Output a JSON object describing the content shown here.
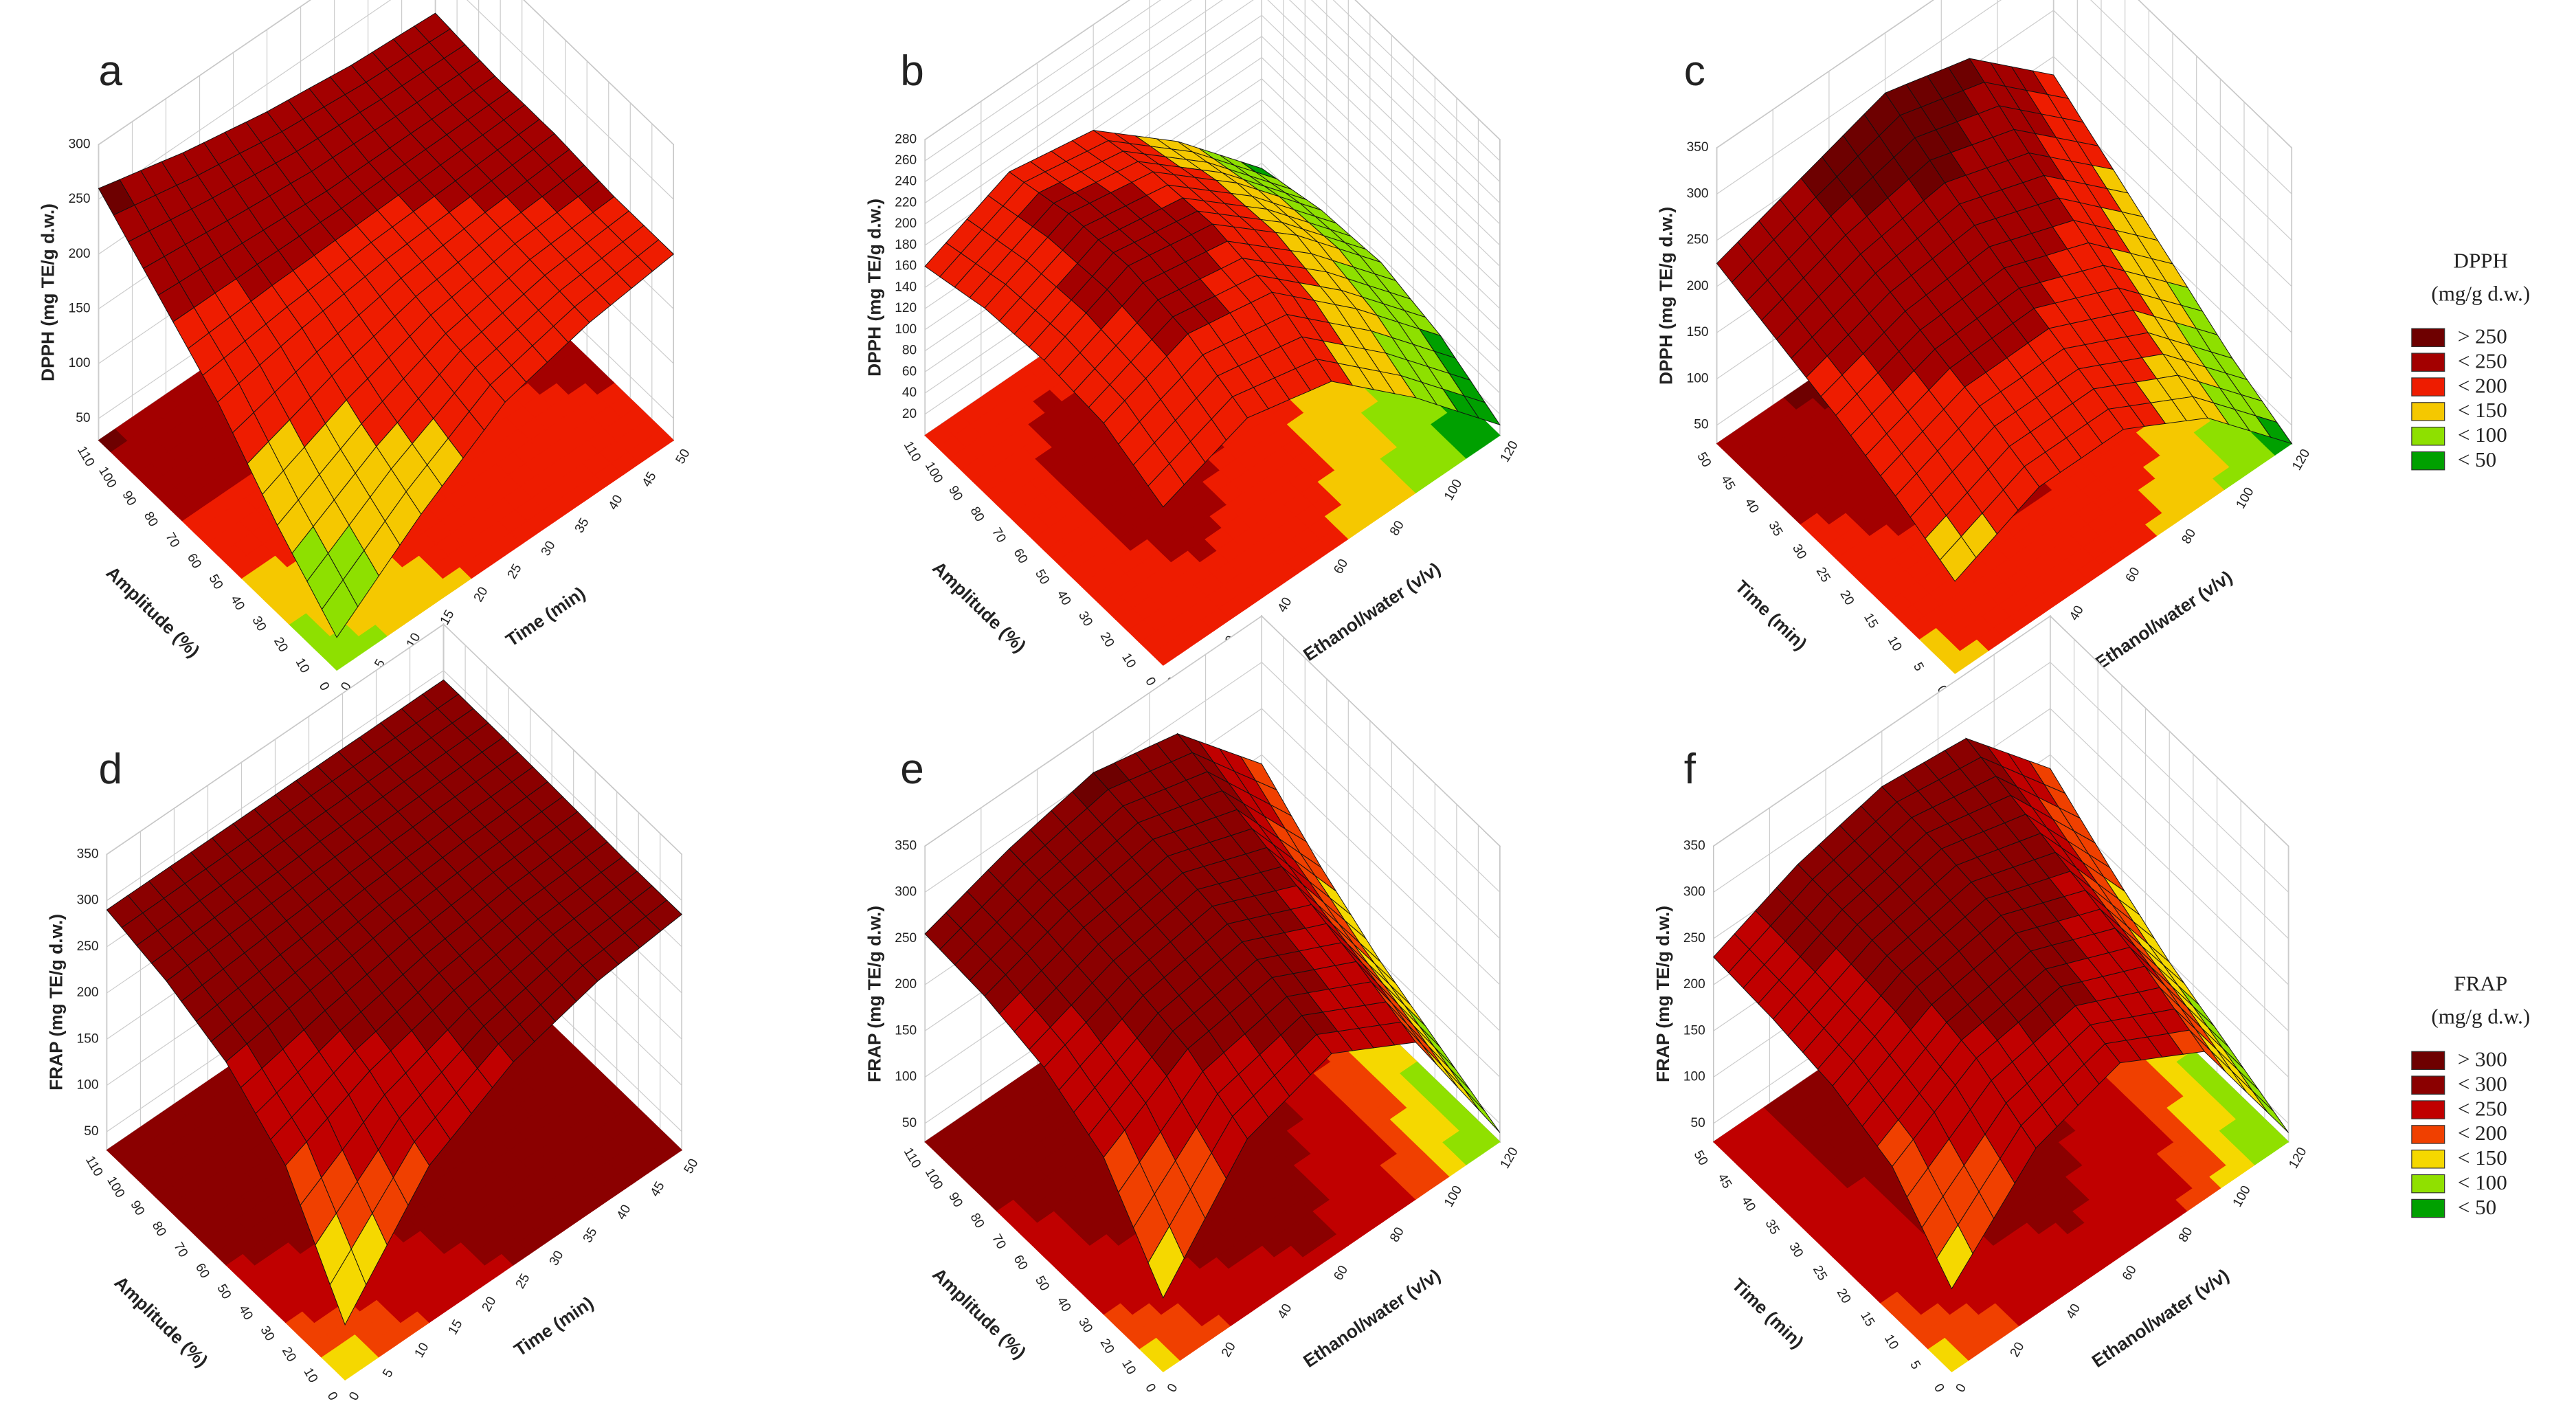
{
  "chart_data": [
    {
      "type": "surface3d",
      "panel": "a",
      "zlabel": "DPPH (mg TE/g d.w.)",
      "xlabel": "Amplitude (%)",
      "ylabel": "Time (min)",
      "xlim": [
        0,
        110
      ],
      "xticks": [
        0,
        10,
        20,
        30,
        40,
        50,
        60,
        70,
        80,
        90,
        100,
        110
      ],
      "ylim": [
        0,
        50
      ],
      "yticks": [
        0,
        5,
        10,
        15,
        20,
        25,
        30,
        35,
        40,
        45,
        50
      ],
      "zlim": [
        30,
        300
      ],
      "zticks": [
        50,
        100,
        150,
        200,
        250,
        300
      ],
      "z": [
        [
          60,
          120,
          170,
          190,
          200
        ],
        [
          110,
          150,
          180,
          195,
          200
        ],
        [
          170,
          185,
          195,
          200,
          205
        ],
        [
          215,
          210,
          205,
          205,
          205
        ],
        [
          260,
          240,
          225,
          215,
          210
        ]
      ]
    },
    {
      "type": "surface3d",
      "panel": "b",
      "zlabel": "DPPH (mg TE/g d.w.)",
      "xlabel": "Amplitude (%)",
      "ylabel": "Ethanol/water (v/v)",
      "xlim": [
        0,
        110
      ],
      "xticks": [
        0,
        10,
        20,
        30,
        40,
        50,
        60,
        70,
        80,
        90,
        100,
        110
      ],
      "ylim": [
        0,
        120
      ],
      "yticks": [
        0,
        20,
        40,
        60,
        80,
        100,
        120
      ],
      "zlim": [
        0,
        280
      ],
      "zticks": [
        20,
        40,
        60,
        80,
        100,
        120,
        140,
        160,
        180,
        200,
        220,
        240,
        260,
        280
      ],
      "z": [
        [
          150,
          180,
          160,
          90,
          10
        ],
        [
          175,
          205,
          190,
          120,
          40
        ],
        [
          180,
          215,
          200,
          135,
          55
        ],
        [
          175,
          210,
          195,
          130,
          50
        ],
        [
          160,
          195,
          180,
          115,
          35
        ]
      ]
    },
    {
      "type": "surface3d",
      "panel": "c",
      "zlabel": "DPPH (mg TE/g d.w.)",
      "xlabel": "Time (min)",
      "ylabel": "Ethanol/water (v/v)",
      "xlim": [
        0,
        50
      ],
      "xticks": [
        0,
        5,
        10,
        15,
        20,
        25,
        30,
        35,
        40,
        45,
        50
      ],
      "ylim": [
        0,
        120
      ],
      "yticks": [
        0,
        20,
        40,
        60,
        80,
        100,
        120
      ],
      "zlim": [
        30,
        350
      ],
      "zticks": [
        50,
        100,
        150,
        200,
        250,
        300,
        350
      ],
      "z": [
        [
          130,
          170,
          170,
          120,
          30
        ],
        [
          160,
          195,
          195,
          150,
          60
        ],
        [
          185,
          215,
          220,
          185,
          100
        ],
        [
          205,
          235,
          250,
          220,
          140
        ],
        [
          225,
          255,
          285,
          260,
          180
        ]
      ]
    },
    {
      "type": "surface3d",
      "panel": "d",
      "zlabel": "FRAP (mg TE/g d.w.)",
      "xlabel": "Amplitude (%)",
      "ylabel": "Time (min)",
      "xlim": [
        0,
        110
      ],
      "xticks": [
        0,
        10,
        20,
        30,
        40,
        50,
        60,
        70,
        80,
        90,
        100,
        110
      ],
      "ylim": [
        0,
        50
      ],
      "yticks": [
        0,
        5,
        10,
        15,
        20,
        25,
        30,
        35,
        40,
        45,
        50
      ],
      "zlim": [
        30,
        350
      ],
      "zticks": [
        50,
        100,
        150,
        200,
        250,
        300,
        350
      ],
      "z": [
        [
          90,
          200,
          250,
          275,
          285
        ],
        [
          200,
          240,
          265,
          280,
          285
        ],
        [
          250,
          265,
          278,
          285,
          288
        ],
        [
          275,
          280,
          285,
          288,
          290
        ],
        [
          290,
          290,
          290,
          290,
          290
        ]
      ]
    },
    {
      "type": "surface3d",
      "panel": "e",
      "zlabel": "FRAP (mg TE/g d.w.)",
      "xlabel": "Amplitude (%)",
      "ylabel": "Ethanol/water (v/v)",
      "xlim": [
        0,
        110
      ],
      "xticks": [
        0,
        10,
        20,
        30,
        40,
        50,
        60,
        70,
        80,
        90,
        100,
        110
      ],
      "ylim": [
        0,
        120
      ],
      "yticks": [
        0,
        20,
        40,
        60,
        80,
        100,
        120
      ],
      "zlim": [
        30,
        350
      ],
      "zticks": [
        50,
        100,
        150,
        200,
        250,
        300,
        350
      ],
      "z": [
        [
          110,
          220,
          250,
          200,
          40
        ],
        [
          200,
          255,
          270,
          225,
          70
        ],
        [
          235,
          270,
          285,
          245,
          100
        ],
        [
          250,
          280,
          295,
          265,
          140
        ],
        [
          255,
          285,
          305,
          285,
          190
        ]
      ]
    },
    {
      "type": "surface3d",
      "panel": "f",
      "zlabel": "FRAP (mg TE/g d.w.)",
      "xlabel": "Time (min)",
      "ylabel": "Ethanol/water (v/v)",
      "xlim": [
        0,
        50
      ],
      "xticks": [
        0,
        5,
        10,
        15,
        20,
        25,
        30,
        35,
        40,
        45,
        50
      ],
      "ylim": [
        0,
        120
      ],
      "yticks": [
        0,
        20,
        40,
        60,
        80,
        100,
        120
      ],
      "zlim": [
        30,
        350
      ],
      "zticks": [
        50,
        100,
        150,
        200,
        250,
        300,
        350
      ],
      "z": [
        [
          120,
          210,
          240,
          190,
          40
        ],
        [
          190,
          245,
          260,
          220,
          70
        ],
        [
          215,
          260,
          275,
          240,
          100
        ],
        [
          225,
          265,
          285,
          260,
          140
        ],
        [
          230,
          268,
          290,
          280,
          185
        ]
      ]
    }
  ],
  "legends": [
    {
      "title": "DPPH",
      "unit": "(mg/g d.w.)",
      "entries": [
        {
          "label": "> 250",
          "value": 250,
          "color": "#6e0000"
        },
        {
          "label": "< 250",
          "value": 250,
          "color": "#a30000"
        },
        {
          "label": "< 200",
          "value": 200,
          "color": "#ee1c00"
        },
        {
          "label": "< 150",
          "value": 150,
          "color": "#f5c800"
        },
        {
          "label": "< 100",
          "value": 100,
          "color": "#8ee000"
        },
        {
          "label": "< 50",
          "value": 50,
          "color": "#00a000"
        }
      ]
    },
    {
      "title": "FRAP",
      "unit": "(mg/g d.w.)",
      "entries": [
        {
          "label": "> 300",
          "value": 300,
          "color": "#6e0000"
        },
        {
          "label": "< 300",
          "value": 300,
          "color": "#8b0000"
        },
        {
          "label": "< 250",
          "value": 250,
          "color": "#c00000"
        },
        {
          "label": "< 200",
          "value": 200,
          "color": "#f04000"
        },
        {
          "label": "< 150",
          "value": 150,
          "color": "#f5d800"
        },
        {
          "label": "< 100",
          "value": 100,
          "color": "#90e000"
        },
        {
          "label": "< 50",
          "value": 50,
          "color": "#00a000"
        }
      ]
    }
  ]
}
